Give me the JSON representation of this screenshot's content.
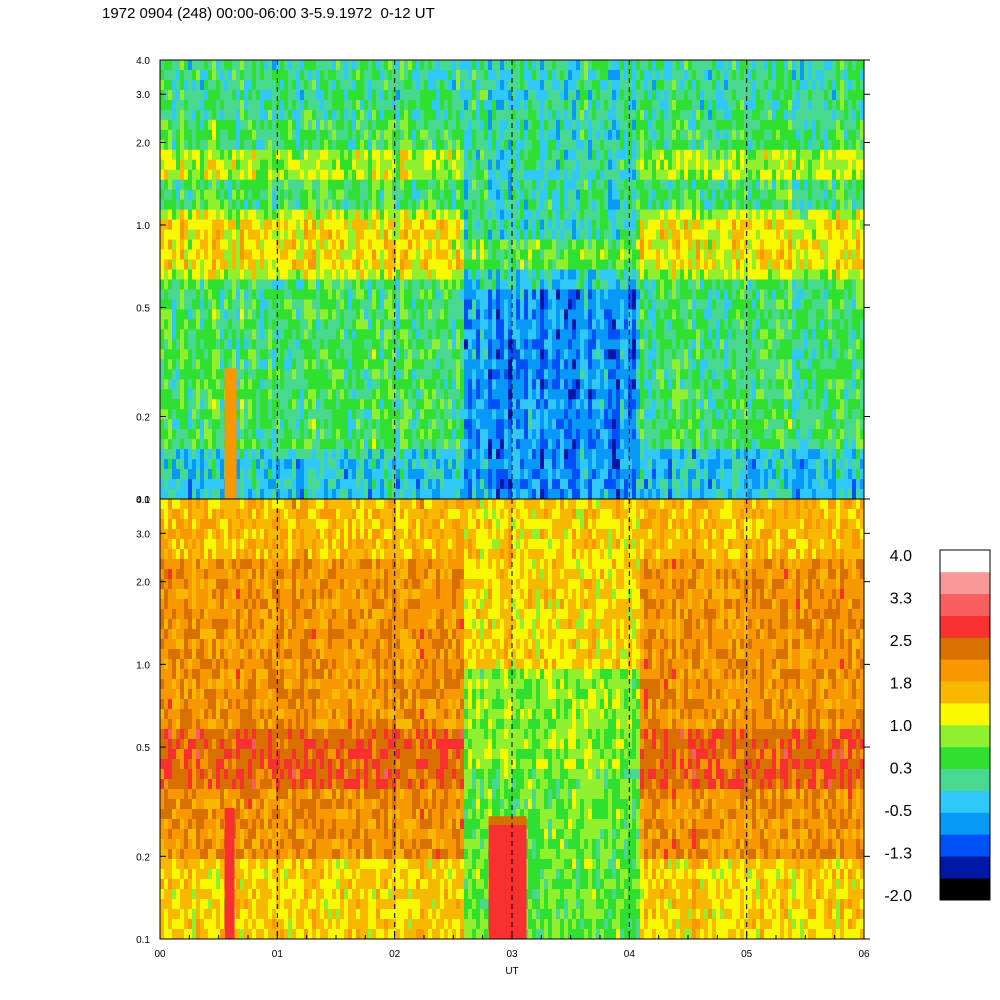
{
  "title": "1972 0904 (248) 00:00-06:00 3-5.9.1972  0-12 UT",
  "chart_data": [
    {
      "type": "heatmap",
      "panel": "top",
      "x": [
        0,
        6
      ],
      "xlim": [
        0,
        6
      ],
      "ylim": [
        0.1,
        4.0
      ],
      "yscale": "log",
      "yticks": [
        0.1,
        0.2,
        0.5,
        1.0,
        2.0,
        3.0,
        4.0
      ],
      "ytick_labels": [
        "0.1",
        "0.2",
        "0.5",
        "1.0",
        "2.0",
        "3.0",
        "4.0"
      ],
      "vlines": [
        1,
        2,
        3,
        4,
        5
      ],
      "quiet_interval_hours": [
        2.6,
        4.1
      ],
      "emission_band_center": 0.85,
      "zlim": [
        -2.0,
        4.0
      ]
    },
    {
      "type": "heatmap",
      "panel": "bottom",
      "x": [
        0,
        6
      ],
      "xlim": [
        0,
        6
      ],
      "ylim": [
        0.1,
        4.0
      ],
      "yscale": "log",
      "yticks": [
        0.1,
        0.2,
        0.5,
        1.0,
        2.0,
        3.0,
        4.0
      ],
      "ytick_labels": [
        "0.1",
        "0.2",
        "0.5",
        "1.0",
        "2.0",
        "3.0",
        "4.0"
      ],
      "xticks": [
        0,
        1,
        2,
        3,
        4,
        5,
        6
      ],
      "xtick_labels": [
        "00",
        "01",
        "02",
        "03",
        "04",
        "05",
        "06"
      ],
      "xlabel": "UT",
      "vlines": [
        1,
        2,
        3,
        4,
        5
      ],
      "quiet_interval_hours": [
        2.6,
        4.1
      ],
      "emission_band_center": 0.45,
      "zlim": [
        -2.0,
        4.0
      ]
    }
  ],
  "colorbar": {
    "colors": [
      "#000000",
      "#0018a8",
      "#0050f8",
      "#0898f8",
      "#30c8f8",
      "#48d890",
      "#30e030",
      "#90f030",
      "#f8f800",
      "#f8b800",
      "#f89800",
      "#d87000",
      "#f83030",
      "#f86060",
      "#f89898",
      "#ffffff"
    ],
    "labels": [
      "-2.0",
      "-1.3",
      "-0.5",
      "0.3",
      "1.0",
      "1.8",
      "2.5",
      "3.3",
      "4.0"
    ]
  }
}
